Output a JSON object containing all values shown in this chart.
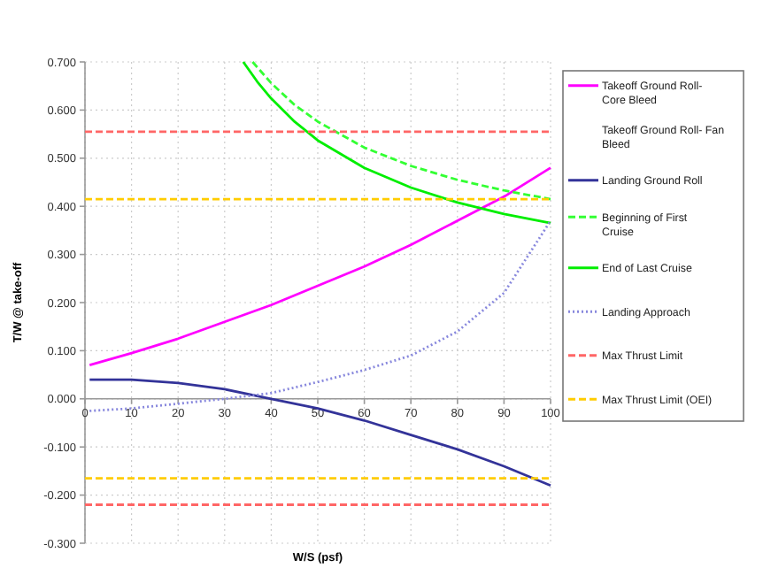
{
  "chart_data": {
    "type": "line",
    "xlabel": "W/S (psf)",
    "ylabel": "T/W @ take-off",
    "xlim": [
      0,
      100
    ],
    "ylim": [
      -0.3,
      0.7
    ],
    "xticks": [
      0,
      10,
      20,
      30,
      40,
      50,
      60,
      70,
      80,
      90,
      100
    ],
    "yticks": [
      {
        "value": -0.3,
        "label": "-0.300"
      },
      {
        "value": -0.2,
        "label": "-0.200"
      },
      {
        "value": -0.1,
        "label": "-0.100"
      },
      {
        "value": 0,
        "label": "0.000"
      },
      {
        "value": 0.1,
        "label": "0.100"
      },
      {
        "value": 0.2,
        "label": "0.200"
      },
      {
        "value": 0.3,
        "label": "0.300"
      },
      {
        "value": 0.4,
        "label": "0.400"
      },
      {
        "value": 0.5,
        "label": "0.500"
      },
      {
        "value": 0.6,
        "label": "0.600"
      },
      {
        "value": 0.7,
        "label": "0.700"
      }
    ],
    "grid": true,
    "legend": "right",
    "marker": "none",
    "series": [
      {
        "name": "Takeoff Ground Roll- Core Bleed",
        "color": "#ff00ff",
        "line_style": "solid",
        "x": [
          1,
          10,
          20,
          30,
          40,
          50,
          60,
          70,
          80,
          90,
          100
        ],
        "values": [
          0.07,
          0.095,
          0.125,
          0.16,
          0.195,
          0.235,
          0.275,
          0.32,
          0.37,
          0.42,
          0.48
        ]
      },
      {
        "name": "Takeoff Ground Roll- Fan Bleed"
      },
      {
        "name": "Landing Ground Roll",
        "color": "#333399",
        "line_style": "solid",
        "x": [
          1,
          10,
          20,
          30,
          40,
          50,
          60,
          70,
          80,
          90,
          100
        ],
        "values": [
          0.04,
          0.04,
          0.033,
          0.02,
          0.0,
          -0.02,
          -0.045,
          -0.075,
          -0.105,
          -0.14,
          -0.18
        ]
      },
      {
        "name": "Beginning of First Cruise",
        "color": "#33ff33",
        "line_style": "dashed",
        "x": [
          36,
          40,
          45,
          50,
          60,
          70,
          80,
          90,
          100
        ],
        "values": [
          0.7,
          0.656,
          0.611,
          0.576,
          0.522,
          0.484,
          0.455,
          0.433,
          0.415
        ]
      },
      {
        "name": "End of Last Cruise",
        "color": "#00ee00",
        "line_style": "solid",
        "x": [
          34,
          37,
          40,
          45,
          50,
          60,
          70,
          80,
          90,
          100
        ],
        "values": [
          0.7,
          0.659,
          0.624,
          0.576,
          0.537,
          0.48,
          0.439,
          0.408,
          0.384,
          0.365
        ]
      },
      {
        "name": "Landing Approach",
        "color": "#8888dd",
        "line_style": "dotted",
        "x": [
          1,
          10,
          20,
          30,
          40,
          50,
          60,
          70,
          80,
          90,
          100
        ],
        "values": [
          -0.025,
          -0.02,
          -0.01,
          0.0,
          0.012,
          0.035,
          0.06,
          0.09,
          0.14,
          0.22,
          0.37
        ]
      },
      {
        "name": "Max Thrust Limit",
        "color": "#ff6666",
        "line_style": "dashed",
        "x": [
          0,
          100
        ],
        "values": [
          0.555,
          0.555
        ]
      },
      {
        "name": "Max Thrust Limit (OEI)",
        "color": "#ffcc00",
        "line_style": "dashed",
        "x": [
          0,
          100
        ],
        "values": [
          0.415,
          0.415
        ]
      },
      {
        "color": "#ff6666",
        "line_style": "dashed",
        "x": [
          0,
          100
        ],
        "values": [
          -0.22,
          -0.22
        ]
      },
      {
        "color": "#ffcc00",
        "line_style": "dashed",
        "x": [
          0,
          100
        ],
        "values": [
          -0.165,
          -0.165
        ]
      }
    ]
  }
}
